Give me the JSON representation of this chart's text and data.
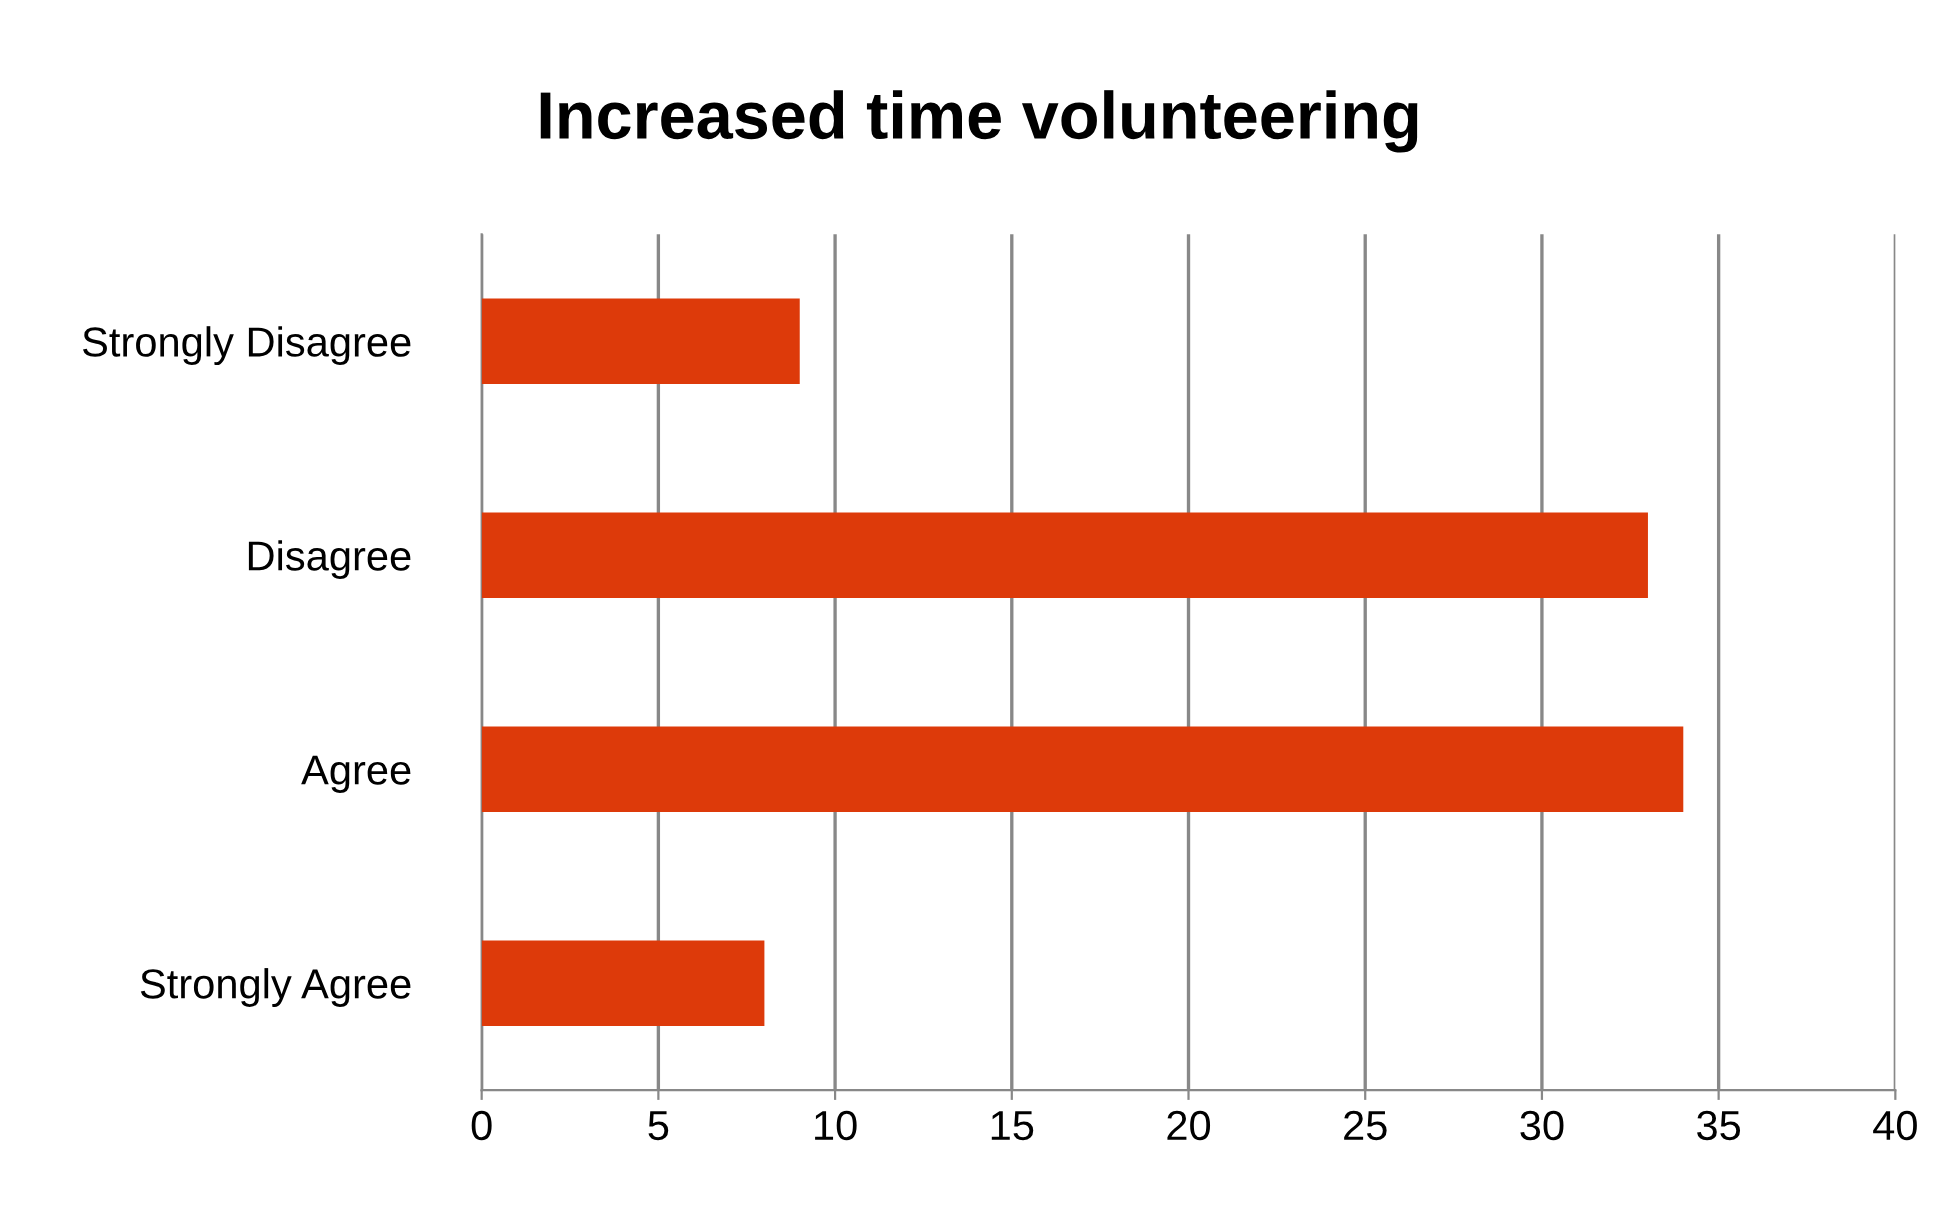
{
  "chart_data": {
    "type": "bar",
    "orientation": "horizontal",
    "title": "Increased time volunteering",
    "categories": [
      "Strongly Disagree",
      "Disagree",
      "Agree",
      "Strongly Agree"
    ],
    "values": [
      9,
      33,
      34,
      8
    ],
    "color": "#dd3a0a",
    "xlim": [
      0,
      40
    ],
    "xticks": [
      0,
      5,
      10,
      15,
      20,
      25,
      30,
      35,
      40
    ],
    "grid": "x",
    "legend": false
  }
}
